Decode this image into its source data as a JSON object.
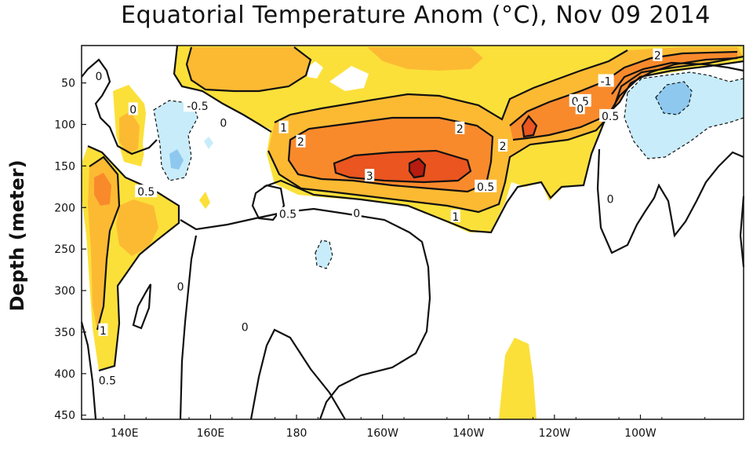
{
  "chart_data": {
    "type": "heatmap",
    "title": "Equatorial Temperature Anom (°C), Nov 09 2014",
    "xlabel": "",
    "ylabel": "Depth (meter)",
    "x_ticks": [
      "140E",
      "160E",
      "180",
      "160W",
      "140W",
      "120W",
      "100W"
    ],
    "x_tick_lon": [
      140,
      160,
      180,
      200,
      220,
      240,
      260
    ],
    "xlim_lon": [
      130,
      284
    ],
    "y_ticks": [
      50,
      100,
      150,
      200,
      250,
      300,
      350,
      400,
      450
    ],
    "ylim": [
      5,
      455
    ],
    "y_inverted": true,
    "contour_levels": [
      -1,
      -0.5,
      0,
      0.5,
      1,
      2,
      3
    ],
    "colors": {
      "neg_1": "#8ec8ee",
      "neg_05": "#c8ecfa",
      "pos_05": "#fbe03a",
      "pos_1": "#fcba33",
      "pos_2": "#f98a2c",
      "pos_3": "#ea5520",
      "pos_4": "#b71c10"
    },
    "contour_labels": [
      {
        "text": "0",
        "lon": 134,
        "depth": 42
      },
      {
        "text": "0",
        "lon": 142,
        "depth": 82
      },
      {
        "text": "-0.5",
        "lon": 157,
        "depth": 78
      },
      {
        "text": "0",
        "lon": 163,
        "depth": 98
      },
      {
        "text": "0.5",
        "lon": 145,
        "depth": 181
      },
      {
        "text": "1",
        "lon": 177,
        "depth": 104
      },
      {
        "text": "2",
        "lon": 181,
        "depth": 121
      },
      {
        "text": "0.5",
        "lon": 178,
        "depth": 208
      },
      {
        "text": "0",
        "lon": 194,
        "depth": 207
      },
      {
        "text": "3",
        "lon": 197,
        "depth": 162
      },
      {
        "text": "2",
        "lon": 218,
        "depth": 105
      },
      {
        "text": "1",
        "lon": 217,
        "depth": 211
      },
      {
        "text": "0.5",
        "lon": 224,
        "depth": 175
      },
      {
        "text": "2",
        "lon": 228,
        "depth": 126
      },
      {
        "text": "-1",
        "lon": 252,
        "depth": 48
      },
      {
        "text": "0.5",
        "lon": 246,
        "depth": 72
      },
      {
        "text": "0",
        "lon": 246,
        "depth": 81
      },
      {
        "text": "0.5",
        "lon": 253,
        "depth": 90
      },
      {
        "text": "2",
        "lon": 264,
        "depth": 17
      },
      {
        "text": "0",
        "lon": 253,
        "depth": 190
      },
      {
        "text": "0",
        "lon": 153,
        "depth": 295
      },
      {
        "text": "0",
        "lon": 168,
        "depth": 344
      },
      {
        "text": "1",
        "lon": 135,
        "depth": 348
      },
      {
        "text": "0.5",
        "lon": 136,
        "depth": 408
      }
    ]
  }
}
